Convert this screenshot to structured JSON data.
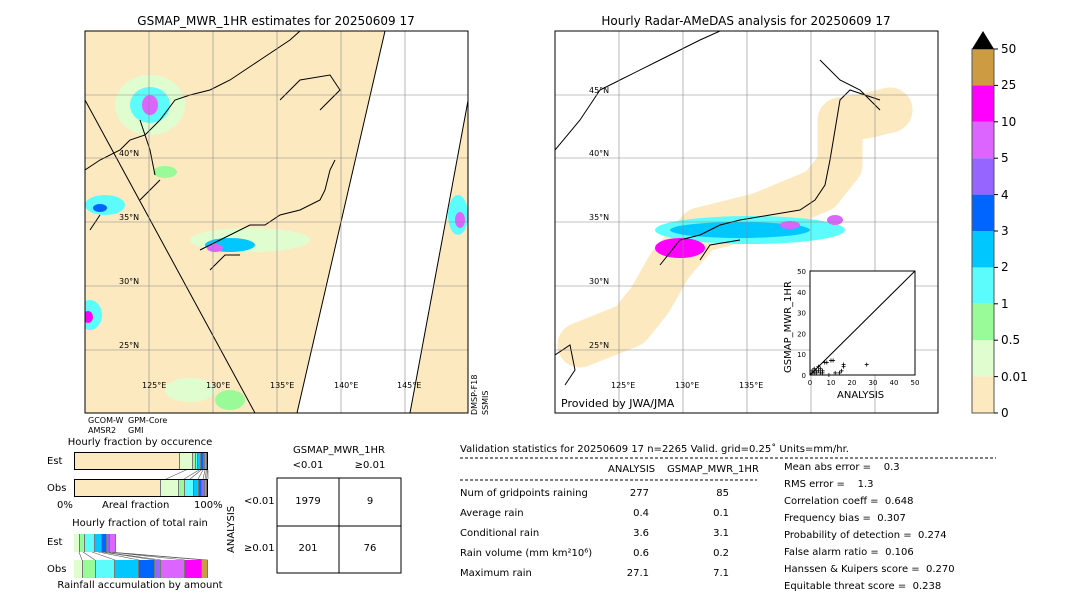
{
  "left_map": {
    "title": "GSMAP_MWR_1HR estimates for 20250609 17",
    "lat_labels": [
      "40°N",
      "35°N",
      "30°N",
      "25°N"
    ],
    "lon_labels": [
      "125°E",
      "130°E",
      "135°E",
      "140°E",
      "145°E"
    ],
    "sensor_labels": [
      "GCOM-W",
      "GPM-Core",
      "AMSR2",
      "GMI"
    ],
    "side_label_1": "DMSP-F18",
    "side_label_2": "SSMIS"
  },
  "right_map": {
    "title": "Hourly Radar-AMeDAS analysis for 20250609 17",
    "lat_labels": [
      "45°N",
      "40°N",
      "35°N",
      "30°N",
      "25°N"
    ],
    "lon_labels": [
      "125°E",
      "130°E",
      "135°E"
    ],
    "credit": "Provided by JWA/JMA"
  },
  "colorbar": {
    "levels": [
      "0",
      "0.01",
      "0.5",
      "1",
      "2",
      "3",
      "4",
      "5",
      "10",
      "25",
      "50"
    ],
    "colors": [
      "#fde9c0",
      "#e0fdd0",
      "#98fb98",
      "#5cfcfc",
      "#00c8ff",
      "#0064ff",
      "#9664ff",
      "#dc64ff",
      "#ff00ff",
      "#cd9b42"
    ],
    "extend_color": "#000000"
  },
  "chart_data": [
    {
      "type": "scatter",
      "xlabel": "ANALYSIS",
      "ylabel": "GSMAP_MWR_1HR",
      "xlim": [
        0,
        50
      ],
      "ylim": [
        0,
        50
      ],
      "ticks": [
        "0",
        "10",
        "20",
        "30",
        "40",
        "50"
      ],
      "points": [
        [
          1,
          1
        ],
        [
          2,
          3
        ],
        [
          3,
          2
        ],
        [
          2,
          1
        ],
        [
          4,
          4
        ],
        [
          5,
          3
        ],
        [
          6,
          2
        ],
        [
          7,
          6
        ],
        [
          8,
          6
        ],
        [
          10,
          7
        ],
        [
          11,
          7
        ],
        [
          12,
          1
        ],
        [
          14,
          1
        ],
        [
          15,
          2
        ],
        [
          16,
          5
        ],
        [
          16,
          4
        ],
        [
          27,
          5
        ],
        [
          3,
          1
        ],
        [
          1,
          2
        ],
        [
          5,
          1
        ],
        [
          9,
          0
        ],
        [
          6,
          1
        ],
        [
          4,
          2
        ],
        [
          2,
          2
        ]
      ]
    },
    {
      "type": "bar",
      "title": "Hourly fraction by occurence",
      "xlabel": "Areal fraction",
      "tick_left": "0%",
      "tick_right": "100%",
      "rows": [
        {
          "name": "Est",
          "values": [
            83.6,
            9.7,
            1.5,
            1.5,
            1.5,
            1,
            0.7,
            0.5
          ]
        },
        {
          "name": "Obs",
          "values": [
            68.7,
            13.4,
            4.5,
            6,
            3.7,
            1.5,
            1.2,
            1
          ]
        }
      ]
    },
    {
      "type": "bar",
      "title": "Hourly fraction of total rain",
      "xlabel": "Rainfall accumulation by amount",
      "rows": [
        {
          "name": "Est",
          "values": [
            3.7,
            3,
            6.7,
            4.5,
            3,
            1.5,
            3.7,
            0,
            0
          ]
        },
        {
          "name": "Obs",
          "values": [
            6,
            9.7,
            14.9,
            17.9,
            11.9,
            4.5,
            17.9,
            13.4,
            3.7
          ]
        }
      ]
    }
  ],
  "contingency": {
    "title": "GSMAP_MWR_1HR",
    "col_labels": [
      "<0.01",
      "≥0.01"
    ],
    "row_title": "ANALYSIS",
    "row_labels": [
      "<0.01",
      "≥0.01"
    ],
    "cells": [
      [
        "1979",
        "9"
      ],
      [
        "201",
        "76"
      ]
    ]
  },
  "stats": {
    "title": "Validation statistics for 20250609 17  n=2265 Valid. grid=0.25˚ Units=mm/hr.",
    "col_headers": [
      "ANALYSIS",
      "GSMAP_MWR_1HR"
    ],
    "rows": [
      {
        "label": "Num of gridpoints raining",
        "a": "277",
        "g": "85"
      },
      {
        "label": "Average rain",
        "a": "0.4",
        "g": "0.1"
      },
      {
        "label": "Conditional rain",
        "a": "3.6",
        "g": "3.1"
      },
      {
        "label": "Rain volume (mm km²10⁶)",
        "a": "0.6",
        "g": "0.2"
      },
      {
        "label": "Maximum rain",
        "a": "27.1",
        "g": "7.1"
      }
    ],
    "scores": [
      "Mean abs error =    0.3",
      "RMS error =    1.3",
      "Correlation coeff =  0.648",
      "Frequency bias =  0.307",
      "Probability of detection =  0.274",
      "False alarm ratio =  0.106",
      "Hanssen & Kuipers score =  0.270",
      "Equitable threat score =  0.238"
    ]
  }
}
